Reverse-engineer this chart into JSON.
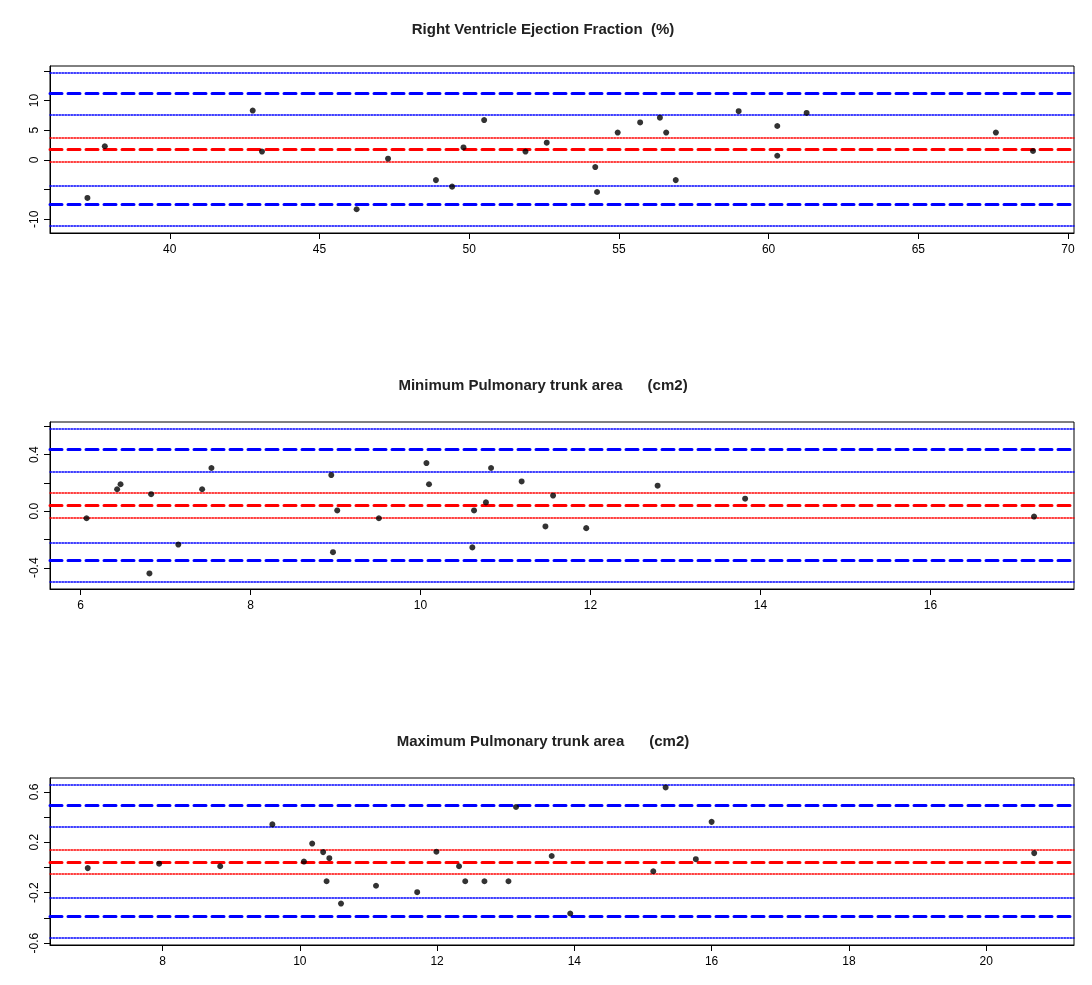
{
  "chart_data": [
    {
      "type": "scatter",
      "title": "Right Ventricle Ejection Fraction  (%)",
      "marker": "circle",
      "grid": false,
      "xlim": [
        36,
        70.2
      ],
      "xticks": [
        40,
        45,
        50,
        55,
        60,
        65,
        70
      ],
      "ylim": [
        -12.3,
        15.8
      ],
      "yticks": [
        {
          "value": -10,
          "label": "-10"
        },
        {
          "value": -5,
          "label": null
        },
        0,
        5,
        10,
        {
          "value": 15,
          "label": null
        }
      ],
      "ref_lines": [
        {
          "axis": "y",
          "value": 14.6,
          "color": "#0000ff",
          "line_style": "dotted"
        },
        {
          "axis": "y",
          "value": 11.2,
          "color": "#0000ff",
          "line_style": "dashed"
        },
        {
          "axis": "y",
          "value": 7.6,
          "color": "#0000ff",
          "line_style": "dotted"
        },
        {
          "axis": "y",
          "value": 3.8,
          "color": "#ff0000",
          "line_style": "dotted"
        },
        {
          "axis": "y",
          "value": 1.8,
          "color": "#ff0000",
          "line_style": "dashed"
        },
        {
          "axis": "y",
          "value": -0.3,
          "color": "#ff0000",
          "line_style": "dotted"
        },
        {
          "axis": "y",
          "value": -4.3,
          "color": "#0000ff",
          "line_style": "dotted"
        },
        {
          "axis": "y",
          "value": -7.4,
          "color": "#0000ff",
          "line_style": "dashed"
        },
        {
          "axis": "y",
          "value": -11.1,
          "color": "#0000ff",
          "line_style": "dotted"
        }
      ],
      "series": [
        {
          "color": "#000000",
          "x": [
            37.25,
            37.83,
            42.77,
            43.08,
            46.24,
            47.29,
            48.89,
            49.43,
            49.81,
            50.5,
            51.88,
            52.59,
            54.21,
            54.27,
            54.96,
            55.71,
            56.37,
            56.58,
            56.9,
            59.0,
            60.29,
            60.29,
            61.27,
            67.59,
            68.83
          ],
          "values": [
            -6.4,
            2.3,
            8.3,
            1.4,
            -8.3,
            0.2,
            -3.4,
            -4.5,
            2.1,
            6.7,
            1.4,
            2.9,
            -1.2,
            -5.4,
            4.6,
            6.3,
            7.1,
            4.6,
            -3.4,
            8.2,
            5.7,
            0.7,
            7.9,
            4.6,
            1.5
          ]
        }
      ]
    },
    {
      "type": "scatter",
      "title": "Minimum Pulmonary trunk area      (cm2)",
      "marker": "circle",
      "grid": false,
      "xlim": [
        5.64,
        17.69
      ],
      "xticks": [
        6,
        8,
        10,
        12,
        14,
        16
      ],
      "ylim": [
        -0.55,
        0.63
      ],
      "yticks": [
        {
          "value": -0.4,
          "label": "-0.4"
        },
        {
          "value": -0.2,
          "label": null
        },
        {
          "value": 0,
          "label": "0.0"
        },
        {
          "value": 0.2,
          "label": null
        },
        0.4,
        {
          "value": 0.6,
          "label": null
        }
      ],
      "ref_lines": [
        {
          "axis": "y",
          "value": 0.584,
          "color": "#0000ff",
          "line_style": "dotted"
        },
        {
          "axis": "y",
          "value": 0.439,
          "color": "#0000ff",
          "line_style": "dashed"
        },
        {
          "axis": "y",
          "value": 0.283,
          "color": "#0000ff",
          "line_style": "dotted"
        },
        {
          "axis": "y",
          "value": 0.125,
          "color": "#ff0000",
          "line_style": "dotted"
        },
        {
          "axis": "y",
          "value": 0.04,
          "color": "#ff0000",
          "line_style": "dashed"
        },
        {
          "axis": "y",
          "value": -0.046,
          "color": "#ff0000",
          "line_style": "dotted"
        },
        {
          "axis": "y",
          "value": -0.218,
          "color": "#0000ff",
          "line_style": "dotted"
        },
        {
          "axis": "y",
          "value": -0.349,
          "color": "#0000ff",
          "line_style": "dashed"
        },
        {
          "axis": "y",
          "value": -0.502,
          "color": "#0000ff",
          "line_style": "dotted"
        }
      ],
      "series": [
        {
          "color": "#000000",
          "x": [
            6.07,
            6.43,
            6.47,
            6.83,
            6.81,
            7.15,
            7.43,
            7.54,
            8.95,
            9.02,
            8.97,
            9.51,
            10.07,
            10.1,
            10.61,
            10.63,
            10.77,
            10.83,
            11.19,
            11.47,
            11.56,
            11.95,
            12.79,
            13.82,
            17.22
          ],
          "values": [
            -0.05,
            0.155,
            0.19,
            0.12,
            -0.44,
            -0.236,
            0.155,
            0.305,
            0.255,
            0.005,
            -0.29,
            -0.05,
            0.34,
            0.19,
            -0.256,
            0.005,
            0.062,
            0.305,
            0.21,
            -0.108,
            0.11,
            -0.12,
            0.18,
            0.088,
            -0.038
          ]
        }
      ]
    },
    {
      "type": "scatter",
      "title": "Maximum Pulmonary trunk area      (cm2)",
      "marker": "circle",
      "grid": false,
      "xlim": [
        6.36,
        21.28
      ],
      "xticks": [
        8,
        10,
        12,
        14,
        16,
        18,
        20
      ],
      "ylim": [
        -0.615,
        0.71
      ],
      "yticks": [
        -0.6,
        {
          "value": -0.4,
          "label": null
        },
        -0.2,
        {
          "value": 0,
          "label": null
        },
        0.2,
        {
          "value": 0.4,
          "label": null
        },
        0.6
      ],
      "ref_lines": [
        {
          "axis": "y",
          "value": 0.655,
          "color": "#0000ff",
          "line_style": "dotted"
        },
        {
          "axis": "y",
          "value": 0.494,
          "color": "#0000ff",
          "line_style": "dashed"
        },
        {
          "axis": "y",
          "value": 0.322,
          "color": "#0000ff",
          "line_style": "dotted"
        },
        {
          "axis": "y",
          "value": 0.142,
          "color": "#ff0000",
          "line_style": "dotted"
        },
        {
          "axis": "y",
          "value": 0.043,
          "color": "#ff0000",
          "line_style": "dashed"
        },
        {
          "axis": "y",
          "value": -0.05,
          "color": "#ff0000",
          "line_style": "dotted"
        },
        {
          "axis": "y",
          "value": -0.241,
          "color": "#0000ff",
          "line_style": "dotted"
        },
        {
          "axis": "y",
          "value": -0.387,
          "color": "#0000ff",
          "line_style": "dashed"
        },
        {
          "axis": "y",
          "value": -0.562,
          "color": "#0000ff",
          "line_style": "dotted"
        }
      ],
      "series": [
        {
          "color": "#000000",
          "x": [
            6.91,
            7.95,
            8.84,
            9.6,
            10.06,
            10.18,
            10.34,
            10.43,
            10.39,
            10.6,
            11.11,
            11.71,
            11.99,
            12.32,
            12.41,
            12.69,
            13.04,
            13.15,
            13.67,
            13.94,
            15.15,
            15.33,
            15.77,
            16.0,
            20.7
          ],
          "values": [
            -0.005,
            0.03,
            0.01,
            0.342,
            0.047,
            0.19,
            0.122,
            0.074,
            -0.109,
            -0.286,
            -0.145,
            -0.196,
            0.125,
            0.01,
            -0.109,
            -0.109,
            -0.109,
            0.48,
            0.091,
            -0.365,
            -0.03,
            0.635,
            0.066,
            0.362,
            0.114
          ]
        }
      ]
    }
  ]
}
